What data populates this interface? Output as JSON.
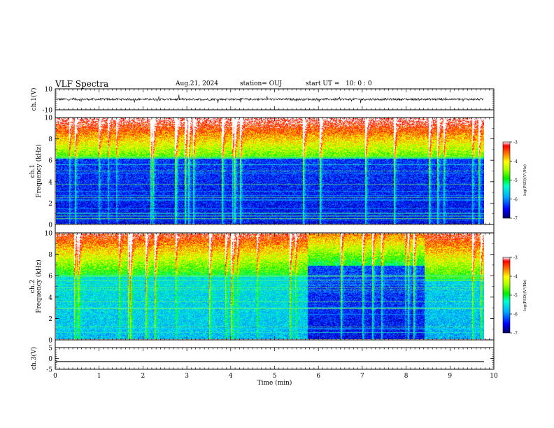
{
  "header": {
    "title": "VLF Spectra",
    "date": "Aug.21, 2024",
    "station": "station= OUJ",
    "start_label": "start  UT =",
    "start_time": "10: 0  : 0"
  },
  "chart_data": [
    {
      "type": "line",
      "panel": "ch1-waveform",
      "ylabel": "ch.1(V)",
      "ylim": [
        -10,
        10
      ],
      "yticks": [
        "10",
        "-10"
      ],
      "baseline": 0,
      "noise_amplitude": 1,
      "color": "#000000"
    },
    {
      "type": "heatmap",
      "panel": "ch1-spectrogram",
      "ylabel_line1": "ch.1",
      "ylabel_line2": "Frequency (kHz)",
      "ylim": [
        0,
        10
      ],
      "yticks": [
        "0",
        "2",
        "4",
        "6",
        "8",
        "10"
      ],
      "xlim": [
        0,
        9.8
      ],
      "description_levels": "log(PSD) high above ~6 kHz, deep blue 0-6 kHz with narrowband lines",
      "colorbar": {
        "label": "log(PSD)(V²/Hz)",
        "range": [
          -7,
          -3
        ],
        "ticks": [
          "-3",
          "-4",
          "-5",
          "-6",
          "-7"
        ]
      }
    },
    {
      "type": "heatmap",
      "panel": "ch2-spectrogram",
      "ylabel_line1": "ch.2",
      "ylabel_line2": "Frequency (kHz)",
      "ylim": [
        0,
        10
      ],
      "yticks": [
        "0",
        "2",
        "4",
        "6",
        "8",
        "10"
      ],
      "xlim": [
        0,
        9.8
      ],
      "colorbar": {
        "label": "log(PSD)(V²/Hz)",
        "range": [
          -7,
          -3
        ],
        "ticks": [
          "-3",
          "-4",
          "-5",
          "-6",
          "-7"
        ]
      }
    },
    {
      "type": "line",
      "panel": "ch3-waveform",
      "ylabel": "ch.3(V)",
      "ylim": [
        -5,
        5
      ],
      "yticks": [
        "5",
        "0",
        "-5"
      ],
      "value": -1.5,
      "color": "#000000",
      "xlabel": "Time  (min)",
      "xlim": [
        0,
        10
      ],
      "xticks": [
        "0",
        "1",
        "2",
        "3",
        "4",
        "5",
        "6",
        "7",
        "8",
        "9",
        "10"
      ]
    }
  ]
}
